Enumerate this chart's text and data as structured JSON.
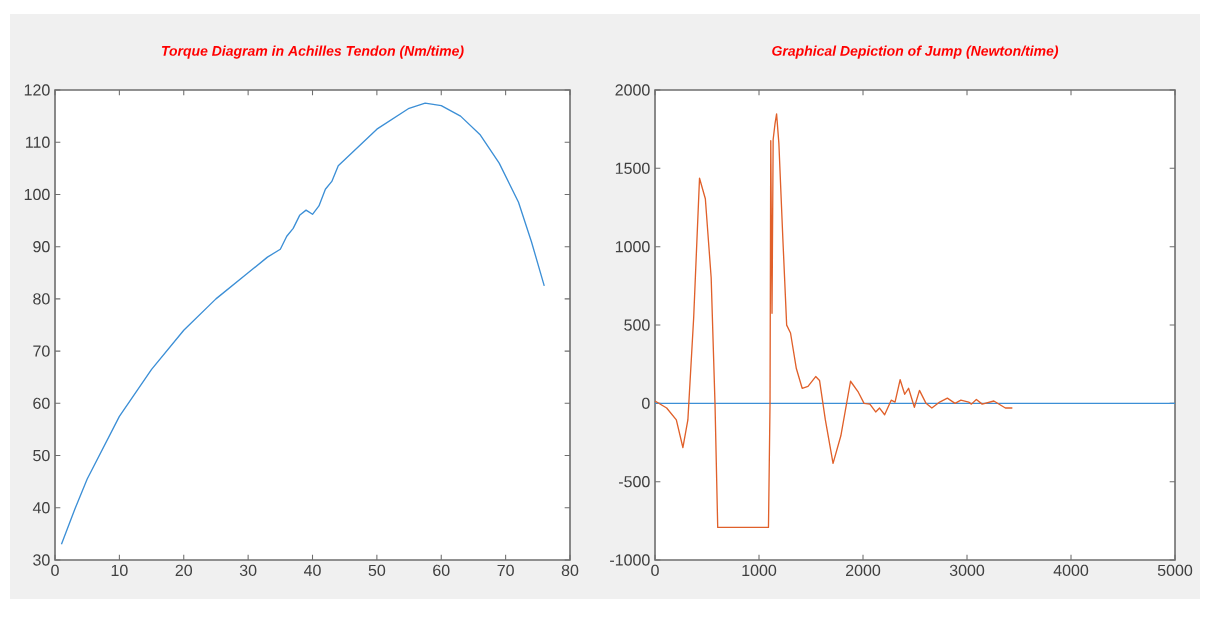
{
  "chart_data": [
    {
      "type": "line",
      "title": "Torque Diagram in Achilles Tendon (Nm/time)",
      "xlim": [
        0,
        80
      ],
      "ylim": [
        30,
        120
      ],
      "xticks": [
        0,
        10,
        20,
        30,
        40,
        50,
        60,
        70,
        80
      ],
      "yticks": [
        30,
        40,
        50,
        60,
        70,
        80,
        90,
        100,
        110,
        120
      ],
      "series": [
        {
          "color": "#3c8fd6",
          "x": [
            1,
            3,
            5,
            10,
            15,
            20,
            25,
            30,
            33,
            35,
            36,
            37,
            38,
            39,
            40,
            41,
            42,
            43,
            44,
            47,
            50,
            55,
            57.5,
            60,
            63,
            66,
            69,
            72,
            74,
            76
          ],
          "values": [
            33,
            39.5,
            45.5,
            57.5,
            66.5,
            74,
            80,
            85,
            88,
            89.5,
            92,
            93.5,
            96,
            97,
            96.2,
            97.8,
            101,
            102.5,
            105.5,
            109,
            112.5,
            116.5,
            117.5,
            117,
            115,
            111.5,
            106,
            98.5,
            91,
            82.5
          ]
        }
      ]
    },
    {
      "type": "line",
      "title": "Graphical Depiction of Jump (Newton/time)",
      "xlim": [
        0,
        5000
      ],
      "ylim": [
        -1000,
        2000
      ],
      "xticks": [
        0,
        1000,
        2000,
        3000,
        4000,
        5000
      ],
      "yticks": [
        -1000,
        -500,
        0,
        500,
        1000,
        1500,
        2000
      ],
      "series": [
        {
          "color": "#3c8fd6",
          "x": [
            0,
            5000
          ],
          "values": [
            0,
            0
          ]
        },
        {
          "color": "#e0602a",
          "x": [
            0,
            112,
            205,
            268,
            316,
            372,
            428,
            484,
            540,
            577,
            603,
            1091,
            1106,
            1113,
            1125,
            1136,
            1154,
            1169,
            1191,
            1229,
            1266,
            1303,
            1359,
            1415,
            1471,
            1545,
            1582,
            1638,
            1712,
            1787,
            1880,
            1955,
            2010,
            2066,
            2122,
            2159,
            2208,
            2271,
            2308,
            2357,
            2401,
            2438,
            2494,
            2543,
            2606,
            2662,
            2737,
            2811,
            2885,
            2941,
            3016,
            3042,
            3090,
            3146,
            3258,
            3369,
            3436
          ],
          "values": [
            15,
            -30,
            -106,
            -282,
            -106,
            550,
            1437,
            1306,
            802,
            -5,
            -792,
            -792,
            0,
            1676,
            575,
            1684,
            1785,
            1848,
            1659,
            1054,
            499,
            449,
            222,
            96,
            108,
            171,
            146,
            -106,
            -383,
            -207,
            141,
            71,
            0,
            -5,
            -55,
            -30,
            -73,
            20,
            8,
            151,
            58,
            96,
            -25,
            83,
            0,
            -30,
            8,
            33,
            0,
            20,
            8,
            -5,
            25,
            -5,
            15,
            -30,
            -30
          ]
        }
      ]
    }
  ]
}
